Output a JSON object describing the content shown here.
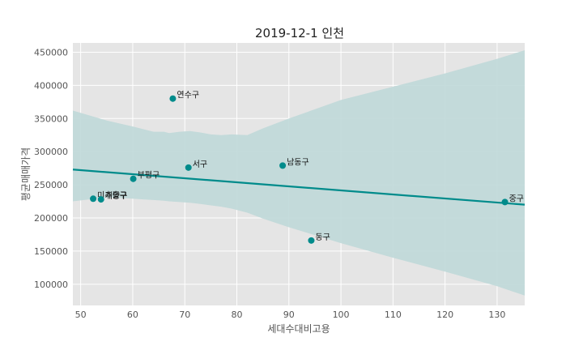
{
  "chart_data": {
    "type": "scatter",
    "title": "2019-12-1 인천",
    "xlabel": "세대수대비고용",
    "ylabel": "평균매매가격",
    "xlim": [
      48.5,
      135.3
    ],
    "ylim": [
      68000,
      464000
    ],
    "xticks": [
      50,
      60,
      70,
      80,
      90,
      100,
      110,
      120,
      130
    ],
    "yticks": [
      100000,
      150000,
      200000,
      250000,
      300000,
      350000,
      400000,
      450000
    ],
    "grid": true,
    "point_color": "#008b8b",
    "line_color": "#008b8b",
    "band_color": "#bfd8d8",
    "background_color": "#e5e5e5",
    "points": [
      {
        "label": "연수구",
        "x": 67.7,
        "y": 380000
      },
      {
        "label": "남동구",
        "x": 88.8,
        "y": 279000
      },
      {
        "label": "서구",
        "x": 70.7,
        "y": 276000
      },
      {
        "label": "부평구",
        "x": 60.1,
        "y": 259000
      },
      {
        "label": "미추홀구",
        "x": 52.4,
        "y": 229000
      },
      {
        "label": "계양구",
        "x": 53.9,
        "y": 228000
      },
      {
        "label": "중구",
        "x": 131.5,
        "y": 224000
      },
      {
        "label": "동구",
        "x": 94.3,
        "y": 166000
      }
    ],
    "regression": {
      "x": [
        48.5,
        135.3
      ],
      "y": [
        273000,
        220000
      ]
    },
    "confidence_band": {
      "x": [
        48.5,
        55,
        60,
        62,
        64,
        66,
        67,
        69,
        71,
        73,
        75,
        77,
        79,
        82,
        85,
        90,
        100,
        110,
        120,
        130,
        135.3
      ],
      "upper": [
        362000,
        347000,
        338000,
        334000,
        330000,
        330000,
        328000,
        330000,
        331000,
        329000,
        326000,
        325000,
        326000,
        325000,
        335000,
        350000,
        378000,
        398000,
        418000,
        440000,
        453000
      ],
      "lower": [
        225000,
        231000,
        229000,
        228000,
        227000,
        226000,
        225000,
        224000,
        223000,
        221000,
        219000,
        217000,
        214000,
        208000,
        199000,
        186000,
        162000,
        140000,
        119000,
        97000,
        83000
      ]
    }
  }
}
